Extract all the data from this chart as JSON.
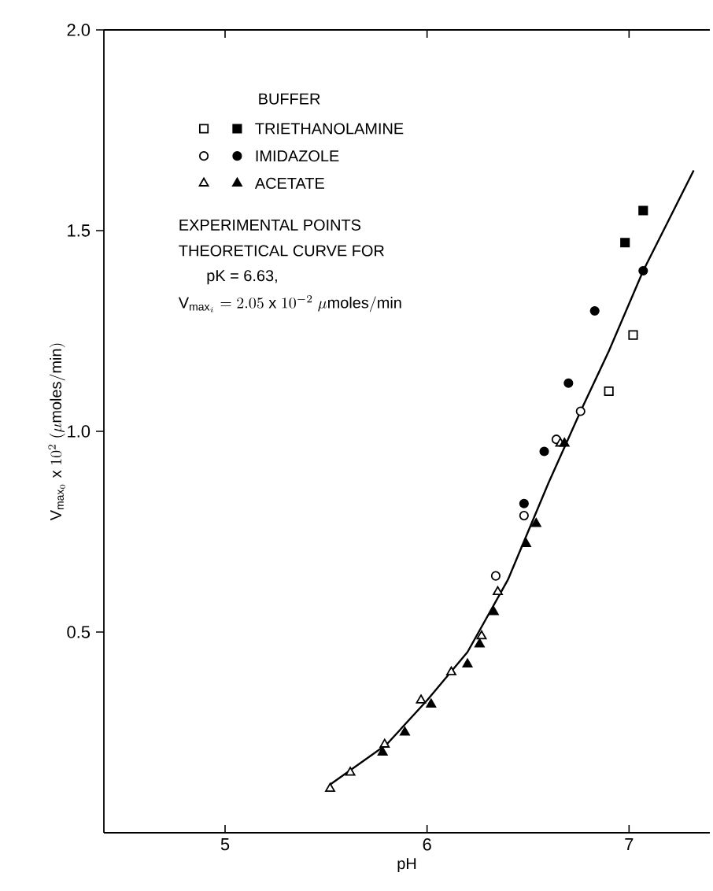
{
  "chart_data": {
    "type": "scatter",
    "xlabel": "pH",
    "ylabel": "\\mathrm{V}_{\\mathrm{max}_0}\\ \\mathrm{x}\\ 10^{2}\\ (\\mu\\mathrm{moles/min})",
    "legend_title": "BUFFER",
    "legend": "top left",
    "xlim": [
      4.4,
      7.4
    ],
    "xticks": [
      5,
      6,
      7
    ],
    "ylim": [
      0,
      2
    ],
    "yticks": [
      0.5,
      {
        "value": 1,
        "label": "1.0"
      },
      1.5,
      {
        "value": 2,
        "label": "2.0"
      }
    ],
    "annotations": [
      "EXPERIMENTAL POINTS",
      "THEORETICAL CURVE FOR",
      "pK = 6.63,",
      "\\mathrm{V}_{\\mathrm{max}_i} = 2.05\\ \\mathrm{x}\\ 10^{-2}\\ \\mu\\mathrm{moles/min}"
    ],
    "series": [
      {
        "type": "line",
        "marker": "none",
        "color": "#000000",
        "x": [
          5.52,
          5.8,
          6.0,
          6.2,
          6.4,
          6.6,
          6.76,
          6.9,
          7.07,
          7.2,
          7.32
        ],
        "values": [
          0.12,
          0.22,
          0.33,
          0.45,
          0.63,
          0.87,
          1.05,
          1.2,
          1.4,
          1.53,
          1.65
        ]
      },
      {
        "marker": "square",
        "color": "#ffffff",
        "x": [
          6.9,
          7.02
        ],
        "values": [
          1.1,
          1.24
        ]
      },
      {
        "marker": "square",
        "name": "TRIETHANOLAMINE",
        "color": "#000000",
        "x": [
          6.98,
          7.07
        ],
        "values": [
          1.47,
          1.55
        ]
      },
      {
        "marker": "circle",
        "color": "#ffffff",
        "x": [
          6.34,
          6.48,
          6.64,
          6.76
        ],
        "values": [
          0.64,
          0.79,
          0.98,
          1.05
        ]
      },
      {
        "marker": "circle",
        "name": "IMIDAZOLE",
        "color": "#000000",
        "x": [
          6.48,
          6.58,
          6.7,
          6.83,
          7.07
        ],
        "values": [
          0.82,
          0.95,
          1.12,
          1.3,
          1.4
        ]
      },
      {
        "marker": "triangle",
        "color": "#ffffff",
        "x": [
          5.52,
          5.62,
          5.79,
          5.97,
          6.12,
          6.27,
          6.35,
          6.66
        ],
        "values": [
          0.11,
          0.15,
          0.22,
          0.33,
          0.4,
          0.49,
          0.6,
          0.97
        ]
      },
      {
        "marker": "triangle",
        "name": "ACETATE",
        "color": "#000000",
        "x": [
          5.78,
          5.89,
          6.02,
          6.2,
          6.26,
          6.33,
          6.49,
          6.54,
          6.68
        ],
        "values": [
          0.2,
          0.25,
          0.32,
          0.42,
          0.47,
          0.55,
          0.72,
          0.77,
          0.97
        ]
      }
    ]
  }
}
